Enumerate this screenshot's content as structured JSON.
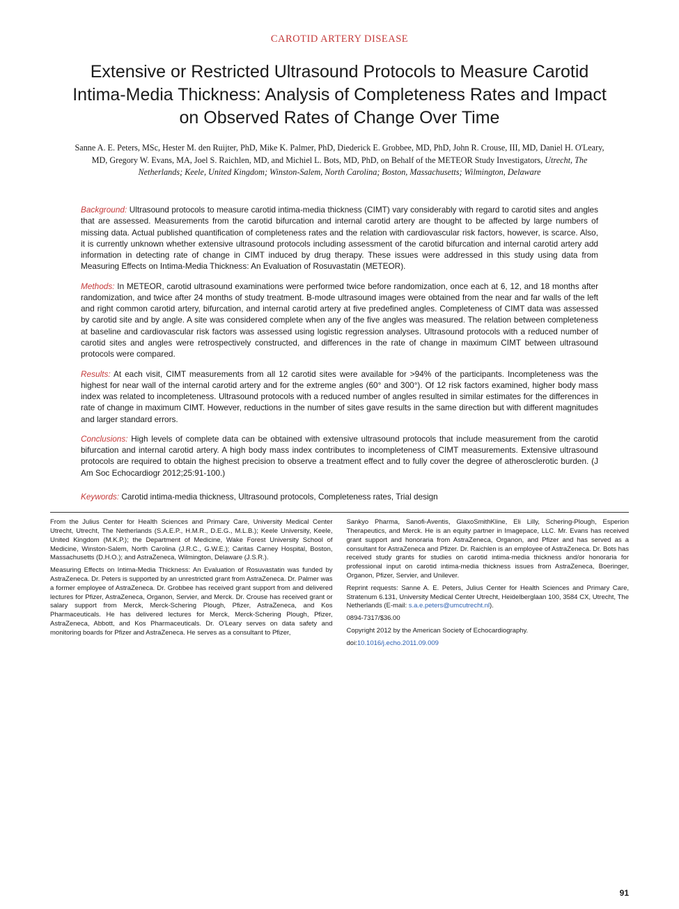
{
  "colors": {
    "accent_red": "#c43a3a",
    "link_blue": "#2a5db0",
    "text": "#1a1a1a",
    "background": "#ffffff",
    "divider": "#333333"
  },
  "typography": {
    "section_header_size": 14.5,
    "title_size": 25,
    "authors_size": 12.2,
    "abstract_size": 11.8,
    "footer_size": 9.5,
    "page_num_size": 12
  },
  "section_header": "CAROTID ARTERY DISEASE",
  "title": "Extensive or Restricted Ultrasound Protocols to Measure Carotid Intima-Media Thickness: Analysis of Completeness Rates and Impact on Observed Rates of Change Over Time",
  "authors": {
    "list": "Sanne A. E. Peters, MSc, Hester M. den Ruijter, PhD, Mike K. Palmer, PhD, Diederick E. Grobbee, MD, PhD, John R. Crouse, III, MD, Daniel H. O'Leary, MD, Gregory W. Evans, MA, Joel S. Raichlen, MD, and Michiel L. Bots, MD, PhD, on Behalf of the METEOR Study Investigators, ",
    "affil": "Utrecht, The Netherlands; Keele, United Kingdom; Winston-Salem, North Carolina; Boston, Massachusetts; Wilmington, Delaware"
  },
  "abstract": {
    "background": {
      "label": "Background:",
      "text": " Ultrasound protocols to measure carotid intima-media thickness (CIMT) vary considerably with regard to carotid sites and angles that are assessed. Measurements from the carotid bifurcation and internal carotid artery are thought to be affected by large numbers of missing data. Actual published quantification of completeness rates and the relation with cardiovascular risk factors, however, is scarce. Also, it is currently unknown whether extensive ultrasound protocols including assessment of the carotid bifurcation and internal carotid artery add information in detecting rate of change in CIMT induced by drug therapy. These issues were addressed in this study using data from Measuring Effects on Intima-Media Thickness: An Evaluation of Rosuvastatin (METEOR)."
    },
    "methods": {
      "label": "Methods:",
      "text": " In METEOR, carotid ultrasound examinations were performed twice before randomization, once each at 6, 12, and 18 months after randomization, and twice after 24 months of study treatment. B-mode ultrasound images were obtained from the near and far walls of the left and right common carotid artery, bifurcation, and internal carotid artery at five predefined angles. Completeness of CIMT data was assessed by carotid site and by angle. A site was considered complete when any of the five angles was measured. The relation between completeness at baseline and cardiovascular risk factors was assessed using logistic regression analyses. Ultrasound protocols with a reduced number of carotid sites and angles were retrospectively constructed, and differences in the rate of change in maximum CIMT between ultrasound protocols were compared."
    },
    "results": {
      "label": "Results:",
      "text": " At each visit, CIMT measurements from all 12 carotid sites were available for >94% of the participants. Incompleteness was the highest for near wall of the internal carotid artery and for the extreme angles (60° and 300°). Of 12 risk factors examined, higher body mass index was related to incompleteness. Ultrasound protocols with a reduced number of angles resulted in similar estimates for the differences in rate of change in maximum CIMT. However, reductions in the number of sites gave results in the same direction but with different magnitudes and larger standard errors."
    },
    "conclusions": {
      "label": "Conclusions:",
      "text": " High levels of complete data can be obtained with extensive ultrasound protocols that include measurement from the carotid bifurcation and internal carotid artery. A high body mass index contributes to incompleteness of CIMT measurements. Extensive ultrasound protocols are required to obtain the highest precision to observe a treatment effect and to fully cover the degree of atherosclerotic burden. (J Am Soc Echocardiogr 2012;25:91-100.)"
    },
    "keywords": {
      "label": "Keywords:",
      "text": " Carotid intima-media thickness, Ultrasound protocols, Completeness rates, Trial design"
    }
  },
  "footer": {
    "left": {
      "p1": "From the Julius Center for Health Sciences and Primary Care, University Medical Center Utrecht, Utrecht, The Netherlands (S.A.E.P., H.M.R., D.E.G., M.L.B.); Keele University, Keele, United Kingdom (M.K.P.); the Department of Medicine, Wake Forest University School of Medicine, Winston-Salem, North Carolina (J.R.C., G.W.E.); Caritas Carney Hospital, Boston, Massachusetts (D.H.O.); and AstraZeneca, Wilmington, Delaware (J.S.R.).",
      "p2": "Measuring Effects on Intima-Media Thickness: An Evaluation of Rosuvastatin was funded by AstraZeneca. Dr. Peters is supported by an unrestricted grant from AstraZeneca. Dr. Palmer was a former employee of AstraZeneca. Dr. Grobbee has received grant support from and delivered lectures for Pfizer, AstraZeneca, Organon, Servier, and Merck. Dr. Crouse has received grant or salary support from Merck, Merck-Schering Plough, Pfizer, AstraZeneca, and Kos Pharmaceuticals. He has delivered lectures for Merck, Merck-Schering Plough, Pfizer, AstraZeneca, Abbott, and Kos Pharmaceuticals. Dr. O'Leary serves on data safety and monitoring boards for Pfizer and AstraZeneca. He serves as a consultant to Pfizer,"
    },
    "right": {
      "p1": "Sankyo Pharma, Sanofi-Aventis, GlaxoSmithKline, Eli Lilly, Schering-Plough, Esperion Therapeutics, and Merck. He is an equity partner in Imagepace, LLC. Mr. Evans has received grant support and honoraria from AstraZeneca, Organon, and Pfizer and has served as a consultant for AstraZeneca and Pfizer. Dr. Raichlen is an employee of AstraZeneca. Dr. Bots has received study grants for studies on carotid intima-media thickness and/or honoraria for professional input on carotid intima-media thickness issues from AstraZeneca, Boeringer, Organon, Pfizer, Servier, and Unilever.",
      "p2_pre": "Reprint requests: Sanne A. E. Peters, Julius Center for Health Sciences and Primary Care, Stratenum 6.131, University Medical Center Utrecht, Heidelberglaan 100, 3584 CX, Utrecht, The Netherlands (E-mail: ",
      "p2_email": "s.a.e.peters@umcutrecht.nl",
      "p2_post": ").",
      "p3": "0894-7317/$36.00",
      "p4": "Copyright 2012 by the American Society of Echocardiography.",
      "p5_pre": "doi:",
      "p5_doi": "10.1016/j.echo.2011.09.009"
    }
  },
  "page_number": "91"
}
